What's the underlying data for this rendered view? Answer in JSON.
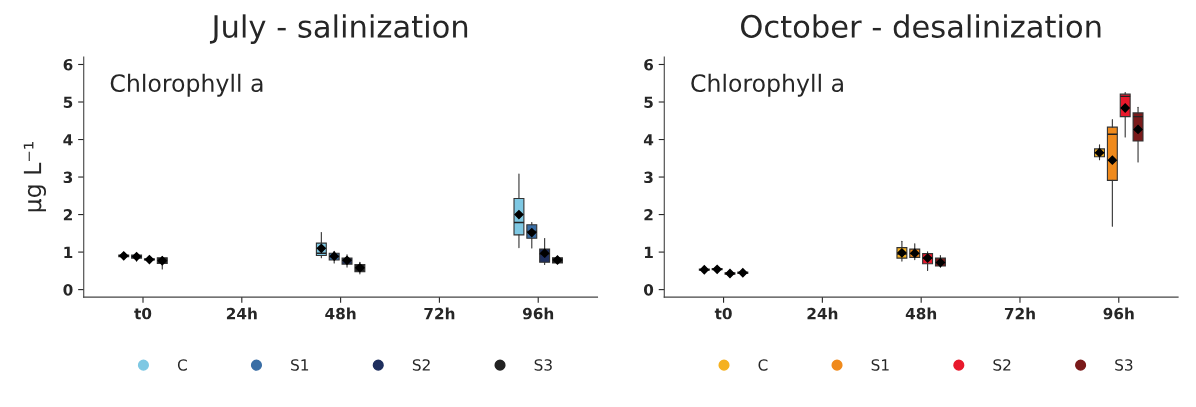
{
  "chart_data": [
    {
      "type": "box",
      "title": "July - salinization",
      "ylabel": "µg L⁻¹",
      "annotations": [
        "Chlorophyll a"
      ],
      "categories": [
        "t0",
        "24h",
        "48h",
        "72h",
        "96h"
      ],
      "ylim": [
        -0.2,
        6.2
      ],
      "yticks": [
        0,
        1,
        2,
        3,
        4,
        5,
        6
      ],
      "legend": "bottom",
      "marker": "circle",
      "grid": false,
      "series": [
        {
          "name": "C",
          "color": "#7ec8e3",
          "boxes": [
            {
              "low": 0.88,
              "q1": 0.88,
              "median": 0.9,
              "q3": 0.92,
              "high": 0.93,
              "mean": 0.9
            },
            null,
            {
              "low": 0.85,
              "q1": 0.91,
              "median": 0.97,
              "q3": 1.24,
              "high": 1.52,
              "mean": 1.1
            },
            null,
            {
              "low": 1.12,
              "q1": 1.46,
              "median": 1.79,
              "q3": 2.43,
              "high": 3.08,
              "mean": 2.0
            }
          ]
        },
        {
          "name": "S1",
          "color": "#3a6ea5",
          "boxes": [
            {
              "low": 0.76,
              "q1": 0.84,
              "median": 0.88,
              "q3": 0.92,
              "high": 0.93,
              "mean": 0.88
            },
            null,
            {
              "low": 0.71,
              "q1": 0.79,
              "median": 0.88,
              "q3": 0.97,
              "high": 1.02,
              "mean": 0.89
            },
            null,
            {
              "low": 1.11,
              "q1": 1.37,
              "median": 1.55,
              "q3": 1.73,
              "high": 1.79,
              "mean": 1.52
            }
          ]
        },
        {
          "name": "S2",
          "color": "#1f2f5e",
          "boxes": [
            {
              "low": 0.78,
              "q1": 0.79,
              "median": 0.8,
              "q3": 0.82,
              "high": 0.83,
              "mean": 0.8
            },
            null,
            {
              "low": 0.6,
              "q1": 0.68,
              "median": 0.78,
              "q3": 0.84,
              "high": 0.93,
              "mean": 0.78
            },
            null,
            {
              "low": 0.67,
              "q1": 0.73,
              "median": 0.95,
              "q3": 1.08,
              "high": 1.36,
              "mean": 0.97
            }
          ]
        },
        {
          "name": "S3",
          "color": "#222222",
          "boxes": [
            {
              "low": 0.55,
              "q1": 0.7,
              "median": 0.78,
              "q3": 0.85,
              "high": 0.88,
              "mean": 0.77
            },
            null,
            {
              "low": 0.42,
              "q1": 0.48,
              "median": 0.58,
              "q3": 0.67,
              "high": 0.73,
              "mean": 0.58
            },
            null,
            {
              "low": 0.7,
              "q1": 0.71,
              "median": 0.79,
              "q3": 0.85,
              "high": 0.88,
              "mean": 0.79
            }
          ]
        }
      ]
    },
    {
      "type": "box",
      "title": "October - desalinization",
      "annotations": [
        "Chlorophyll a"
      ],
      "categories": [
        "t0",
        "24h",
        "48h",
        "72h",
        "96h"
      ],
      "ylim": [
        -0.2,
        6.2
      ],
      "yticks": [
        0,
        1,
        2,
        3,
        4,
        5,
        6
      ],
      "legend": "bottom",
      "marker": "circle",
      "grid": false,
      "series": [
        {
          "name": "C",
          "color": "#f5b120",
          "boxes": [
            {
              "low": 0.51,
              "q1": 0.52,
              "median": 0.53,
              "q3": 0.55,
              "high": 0.56,
              "mean": 0.53
            },
            null,
            {
              "low": 0.76,
              "q1": 0.84,
              "median": 0.95,
              "q3": 1.12,
              "high": 1.29,
              "mean": 0.98
            },
            null,
            {
              "low": 3.46,
              "q1": 3.54,
              "median": 3.65,
              "q3": 3.75,
              "high": 3.86,
              "mean": 3.65
            }
          ]
        },
        {
          "name": "S1",
          "color": "#f08a1c",
          "boxes": [
            {
              "low": 0.52,
              "q1": 0.53,
              "median": 0.54,
              "q3": 0.56,
              "high": 0.57,
              "mean": 0.54
            },
            null,
            {
              "low": 0.8,
              "q1": 0.86,
              "median": 0.96,
              "q3": 1.08,
              "high": 1.22,
              "mean": 0.97
            },
            null,
            {
              "low": 1.69,
              "q1": 2.91,
              "median": 4.14,
              "q3": 4.33,
              "high": 4.53,
              "mean": 3.45
            }
          ]
        },
        {
          "name": "S2",
          "color": "#e8192c",
          "boxes": [
            {
              "low": 0.4,
              "q1": 0.41,
              "median": 0.43,
              "q3": 0.45,
              "high": 0.46,
              "mean": 0.43
            },
            null,
            {
              "low": 0.51,
              "q1": 0.69,
              "median": 0.84,
              "q3": 0.96,
              "high": 1.01,
              "mean": 0.84
            },
            null,
            {
              "low": 4.07,
              "q1": 4.61,
              "median": 5.15,
              "q3": 5.21,
              "high": 5.25,
              "mean": 4.84
            }
          ]
        },
        {
          "name": "S3",
          "color": "#7a1a1a",
          "boxes": [
            {
              "low": 0.42,
              "q1": 0.43,
              "median": 0.45,
              "q3": 0.47,
              "high": 0.48,
              "mean": 0.45
            },
            null,
            {
              "low": 0.6,
              "q1": 0.63,
              "median": 0.72,
              "q3": 0.84,
              "high": 0.91,
              "mean": 0.72
            },
            null,
            {
              "low": 3.4,
              "q1": 3.96,
              "median": 4.61,
              "q3": 4.71,
              "high": 4.86,
              "mean": 4.27
            }
          ]
        }
      ]
    }
  ]
}
